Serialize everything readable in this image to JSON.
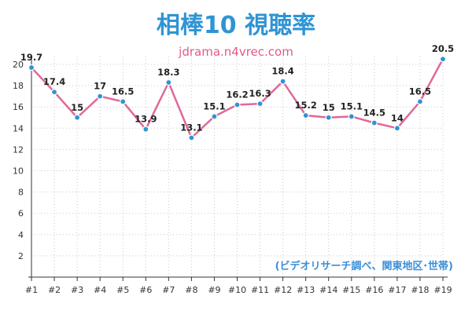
{
  "chart_data": {
    "type": "line",
    "title": "相棒10 視聴率",
    "subtitle": "jdrama.n4vrec.com",
    "note": "(ビデオリサーチ調べ、関東地区･世帯)",
    "categories": [
      "#1",
      "#2",
      "#3",
      "#4",
      "#5",
      "#6",
      "#7",
      "#8",
      "#9",
      "#10",
      "#11",
      "#12",
      "#13",
      "#14",
      "#15",
      "#16",
      "#17",
      "#18",
      "#19"
    ],
    "values": [
      19.7,
      17.4,
      15,
      17,
      16.5,
      13.9,
      18.3,
      13.1,
      15.1,
      16.2,
      16.3,
      18.4,
      15.2,
      15,
      15.1,
      14.5,
      14,
      16.5,
      20.5
    ],
    "value_labels": [
      "19.7",
      "17.4",
      "15",
      "17",
      "16.5",
      "13.9",
      "18.3",
      "13.1",
      "15.1",
      "16.2",
      "16.3",
      "18.4",
      "15.2",
      "15",
      "15.1",
      "14.5",
      "14",
      "16.5",
      "20.5"
    ],
    "yticks": [
      "2",
      "4",
      "6",
      "8",
      "10",
      "12",
      "14",
      "16",
      "18",
      "20"
    ],
    "ylim": [
      0,
      20.5
    ],
    "grid": "dotted",
    "colors": {
      "title": "#2f94d4",
      "subtitle": "#e05a8a",
      "note": "#3a8fd8",
      "line": "#e0689a",
      "marker": "#2f94d4",
      "axis": "#333333",
      "grid": "#c8c8c8"
    }
  }
}
